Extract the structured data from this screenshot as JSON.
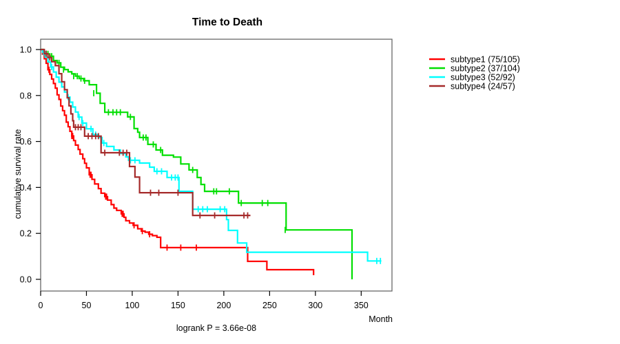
{
  "chart_data": {
    "type": "line",
    "subtype": "kaplan-meier-step",
    "title": "Time to Death",
    "xlabel": "Month",
    "ylabel": "cumulative survival rate",
    "annotation": "logrank P = 3.66e-08",
    "xlim": [
      0,
      385
    ],
    "ylim": [
      0.0,
      1.0
    ],
    "xticks": [
      "0",
      "50",
      "100",
      "150",
      "200",
      "250",
      "300",
      "350"
    ],
    "yticks": [
      "0.0",
      "0.2",
      "0.4",
      "0.6",
      "0.8",
      "1.0"
    ],
    "grid": false,
    "legend_position": "right-outside",
    "axis_color": "#666666",
    "series": [
      {
        "name": "subtype1 (75/105)",
        "color": "#FF0000",
        "points": [
          [
            0,
            1
          ],
          [
            2,
            0.98
          ],
          [
            4,
            0.96
          ],
          [
            6,
            0.94
          ],
          [
            8,
            0.912
          ],
          [
            10,
            0.892
          ],
          [
            12,
            0.872
          ],
          [
            14,
            0.852
          ],
          [
            16,
            0.832
          ],
          [
            18,
            0.803
          ],
          [
            20,
            0.783
          ],
          [
            22,
            0.754
          ],
          [
            24,
            0.734
          ],
          [
            26,
            0.714
          ],
          [
            28,
            0.684
          ],
          [
            30,
            0.664
          ],
          [
            32,
            0.644
          ],
          [
            34,
            0.624
          ],
          [
            36,
            0.604
          ],
          [
            38,
            0.584
          ],
          [
            41,
            0.565
          ],
          [
            43,
            0.545
          ],
          [
            46,
            0.525
          ],
          [
            48,
            0.505
          ],
          [
            50,
            0.485
          ],
          [
            53,
            0.455
          ],
          [
            56,
            0.435
          ],
          [
            59,
            0.415
          ],
          [
            63,
            0.395
          ],
          [
            66,
            0.375
          ],
          [
            70,
            0.36
          ],
          [
            73,
            0.345
          ],
          [
            77,
            0.325
          ],
          [
            80,
            0.31
          ],
          [
            83,
            0.3
          ],
          [
            88,
            0.285
          ],
          [
            91,
            0.27
          ],
          [
            93,
            0.255
          ],
          [
            97,
            0.245
          ],
          [
            101,
            0.235
          ],
          [
            106,
            0.22
          ],
          [
            110,
            0.21
          ],
          [
            114,
            0.205
          ],
          [
            118,
            0.196
          ],
          [
            122,
            0.19
          ],
          [
            127,
            0.183
          ],
          [
            131,
            0.138
          ],
          [
            226,
            0.078
          ],
          [
            247,
            0.042
          ],
          [
            298,
            0.018
          ]
        ],
        "censors": [
          [
            9,
            0.912
          ],
          [
            34,
            0.624
          ],
          [
            35,
            0.624
          ],
          [
            54,
            0.455
          ],
          [
            55,
            0.455
          ],
          [
            71,
            0.36
          ],
          [
            72,
            0.36
          ],
          [
            89,
            0.285
          ],
          [
            90,
            0.285
          ],
          [
            102,
            0.235
          ],
          [
            111,
            0.21
          ],
          [
            119,
            0.196
          ],
          [
            138,
            0.138
          ],
          [
            153,
            0.138
          ],
          [
            170,
            0.138
          ]
        ]
      },
      {
        "name": "subtype2 (37/104)",
        "color": "#00DF00",
        "points": [
          [
            0,
            1
          ],
          [
            3,
            0.99
          ],
          [
            6,
            0.981
          ],
          [
            10,
            0.971
          ],
          [
            14,
            0.952
          ],
          [
            18,
            0.942
          ],
          [
            22,
            0.923
          ],
          [
            26,
            0.913
          ],
          [
            30,
            0.903
          ],
          [
            34,
            0.894
          ],
          [
            38,
            0.884
          ],
          [
            42,
            0.874
          ],
          [
            47,
            0.864
          ],
          [
            53,
            0.847
          ],
          [
            61,
            0.81
          ],
          [
            65,
            0.766
          ],
          [
            70,
            0.727
          ],
          [
            95,
            0.707
          ],
          [
            102,
            0.656
          ],
          [
            106,
            0.64
          ],
          [
            108,
            0.617
          ],
          [
            117,
            0.587
          ],
          [
            126,
            0.563
          ],
          [
            133,
            0.54
          ],
          [
            145,
            0.532
          ],
          [
            153,
            0.502
          ],
          [
            162,
            0.476
          ],
          [
            171,
            0.443
          ],
          [
            175,
            0.413
          ],
          [
            179,
            0.383
          ],
          [
            216,
            0.332
          ],
          [
            268,
            0.215
          ],
          [
            340,
            0
          ]
        ],
        "censors": [
          [
            8,
            0.981
          ],
          [
            12,
            0.971
          ],
          [
            20,
            0.942
          ],
          [
            25,
            0.913
          ],
          [
            36,
            0.884
          ],
          [
            40,
            0.884
          ],
          [
            44,
            0.874
          ],
          [
            48,
            0.864
          ],
          [
            58,
            0.81
          ],
          [
            74,
            0.727
          ],
          [
            79,
            0.727
          ],
          [
            83,
            0.727
          ],
          [
            87,
            0.727
          ],
          [
            98,
            0.707
          ],
          [
            112,
            0.617
          ],
          [
            115,
            0.617
          ],
          [
            123,
            0.587
          ],
          [
            131,
            0.563
          ],
          [
            166,
            0.476
          ],
          [
            189,
            0.383
          ],
          [
            192,
            0.383
          ],
          [
            206,
            0.383
          ],
          [
            219,
            0.332
          ],
          [
            242,
            0.332
          ],
          [
            248,
            0.332
          ],
          [
            267,
            0.215
          ]
        ]
      },
      {
        "name": "subtype3 (52/92)",
        "color": "#00FFFF",
        "points": [
          [
            0,
            1
          ],
          [
            2,
            0.989
          ],
          [
            5,
            0.967
          ],
          [
            8,
            0.946
          ],
          [
            11,
            0.924
          ],
          [
            14,
            0.902
          ],
          [
            17,
            0.88
          ],
          [
            20,
            0.858
          ],
          [
            23,
            0.837
          ],
          [
            26,
            0.815
          ],
          [
            29,
            0.793
          ],
          [
            32,
            0.771
          ],
          [
            35,
            0.75
          ],
          [
            38,
            0.728
          ],
          [
            41,
            0.706
          ],
          [
            45,
            0.68
          ],
          [
            50,
            0.655
          ],
          [
            57,
            0.63
          ],
          [
            63,
            0.617
          ],
          [
            67,
            0.593
          ],
          [
            72,
            0.578
          ],
          [
            80,
            0.563
          ],
          [
            87,
            0.548
          ],
          [
            93,
            0.533
          ],
          [
            96,
            0.518
          ],
          [
            108,
            0.506
          ],
          [
            119,
            0.488
          ],
          [
            124,
            0.47
          ],
          [
            138,
            0.443
          ],
          [
            151,
            0.383
          ],
          [
            166,
            0.305
          ],
          [
            203,
            0.26
          ],
          [
            205,
            0.213
          ],
          [
            215,
            0.158
          ],
          [
            225,
            0.118
          ],
          [
            357,
            0.08
          ],
          [
            372,
            0.08
          ]
        ],
        "censors": [
          [
            3,
            0.989
          ],
          [
            12,
            0.924
          ],
          [
            30,
            0.793
          ],
          [
            42,
            0.706
          ],
          [
            46,
            0.68
          ],
          [
            55,
            0.655
          ],
          [
            60,
            0.63
          ],
          [
            69,
            0.593
          ],
          [
            98,
            0.518
          ],
          [
            103,
            0.518
          ],
          [
            127,
            0.47
          ],
          [
            132,
            0.47
          ],
          [
            143,
            0.443
          ],
          [
            147,
            0.443
          ],
          [
            150,
            0.443
          ],
          [
            172,
            0.305
          ],
          [
            177,
            0.305
          ],
          [
            182,
            0.305
          ],
          [
            196,
            0.305
          ],
          [
            201,
            0.305
          ],
          [
            367,
            0.08
          ],
          [
            371,
            0.08
          ]
        ]
      },
      {
        "name": "subtype4 (24/57)",
        "color": "#A52A2A",
        "points": [
          [
            0,
            1
          ],
          [
            4,
            0.982
          ],
          [
            8,
            0.965
          ],
          [
            12,
            0.947
          ],
          [
            16,
            0.93
          ],
          [
            20,
            0.895
          ],
          [
            23,
            0.86
          ],
          [
            26,
            0.825
          ],
          [
            29,
            0.79
          ],
          [
            31,
            0.755
          ],
          [
            33,
            0.72
          ],
          [
            35,
            0.69
          ],
          [
            36,
            0.662
          ],
          [
            48,
            0.623
          ],
          [
            66,
            0.551
          ],
          [
            97,
            0.491
          ],
          [
            103,
            0.445
          ],
          [
            108,
            0.377
          ],
          [
            166,
            0.278
          ],
          [
            229,
            0.278
          ]
        ],
        "censors": [
          [
            6,
            0.982
          ],
          [
            10,
            0.965
          ],
          [
            38,
            0.662
          ],
          [
            41,
            0.662
          ],
          [
            44,
            0.662
          ],
          [
            52,
            0.623
          ],
          [
            56,
            0.623
          ],
          [
            60,
            0.623
          ],
          [
            63,
            0.623
          ],
          [
            70,
            0.551
          ],
          [
            86,
            0.551
          ],
          [
            90,
            0.551
          ],
          [
            94,
            0.551
          ],
          [
            120,
            0.377
          ],
          [
            129,
            0.377
          ],
          [
            150,
            0.377
          ],
          [
            174,
            0.278
          ],
          [
            190,
            0.278
          ],
          [
            222,
            0.278
          ],
          [
            226,
            0.278
          ]
        ]
      }
    ]
  }
}
